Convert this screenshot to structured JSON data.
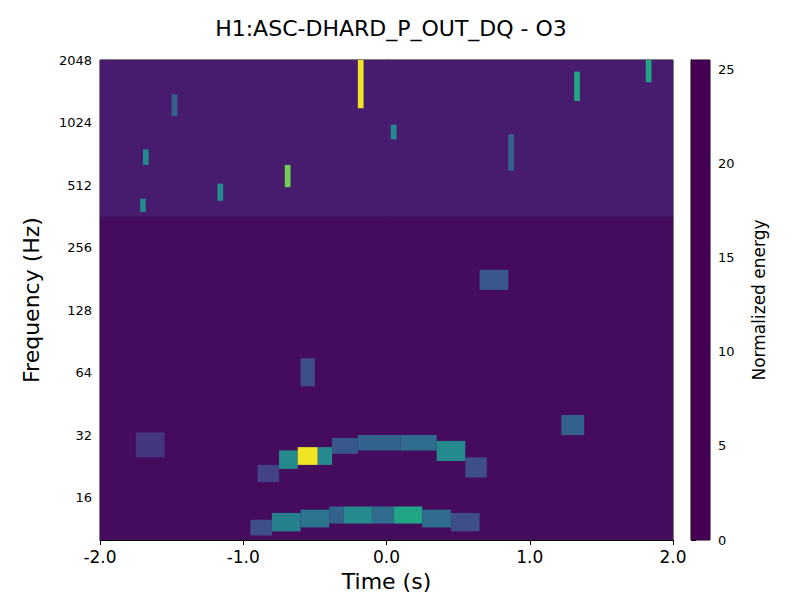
{
  "chart_data": {
    "type": "heatmap",
    "title": "H1:ASC-DHARD_P_OUT_DQ - O3",
    "x_label": "Time (s)",
    "y_label": "Frequency (Hz)",
    "xlim": [
      -2,
      2
    ],
    "xticks": [
      {
        "value": -2,
        "label": "-2.0"
      },
      {
        "value": -1,
        "label": "-1.0"
      },
      {
        "value": 0,
        "label": "0.0"
      },
      {
        "value": 1,
        "label": "1.0"
      },
      {
        "value": 2,
        "label": "2.0"
      }
    ],
    "ylim": [
      10,
      2048
    ],
    "yticks": [
      16,
      32,
      64,
      128,
      256,
      512,
      1024,
      2048
    ],
    "log": "y",
    "grid": false,
    "cells": [
      [
        -2,
        2,
        10,
        360,
        0.8
      ],
      [
        -2,
        2,
        360,
        2048,
        2
      ],
      [
        -0.95,
        -0.8,
        10.5,
        12.5,
        6
      ],
      [
        -0.8,
        -0.6,
        11,
        13.5,
        11
      ],
      [
        -0.6,
        -0.4,
        11.5,
        14,
        10
      ],
      [
        -0.4,
        -0.3,
        12,
        14.5,
        8
      ],
      [
        -0.3,
        -0.1,
        12,
        14.5,
        12
      ],
      [
        -0.1,
        0.05,
        12,
        14.5,
        9
      ],
      [
        0.05,
        0.25,
        12,
        14.5,
        15
      ],
      [
        0.25,
        0.45,
        11.5,
        14,
        9
      ],
      [
        0.45,
        0.65,
        11,
        13.5,
        6
      ],
      [
        -0.9,
        -0.75,
        19,
        23,
        5
      ],
      [
        -0.75,
        -0.62,
        22,
        27,
        12
      ],
      [
        -0.62,
        -0.48,
        23,
        28,
        25
      ],
      [
        -0.48,
        -0.38,
        23,
        28,
        12
      ],
      [
        -0.38,
        -0.2,
        26,
        31,
        7
      ],
      [
        -0.2,
        0.1,
        27,
        32,
        8
      ],
      [
        0.1,
        0.35,
        27,
        32,
        9
      ],
      [
        0.35,
        0.55,
        24,
        30,
        12
      ],
      [
        0.55,
        0.7,
        20,
        25,
        6
      ],
      [
        1.22,
        1.38,
        32,
        40,
        8
      ],
      [
        0.65,
        0.85,
        160,
        200,
        7
      ],
      [
        -0.6,
        -0.5,
        55,
        75,
        6
      ],
      [
        -1.75,
        -1.55,
        25,
        33,
        4
      ],
      [
        -0.2,
        -0.16,
        1200,
        2048,
        25
      ],
      [
        0.03,
        0.07,
        850,
        1000,
        12
      ],
      [
        -0.71,
        -0.67,
        500,
        640,
        20
      ],
      [
        -1.7,
        -1.66,
        640,
        760,
        12
      ],
      [
        -1.18,
        -1.14,
        430,
        520,
        12
      ],
      [
        1.31,
        1.35,
        1300,
        1800,
        15
      ],
      [
        1.81,
        1.85,
        1600,
        2048,
        15
      ],
      [
        -1.72,
        -1.68,
        380,
        440,
        12
      ],
      [
        -1.5,
        -1.46,
        1100,
        1400,
        8
      ],
      [
        0.85,
        0.89,
        600,
        900,
        8
      ]
    ],
    "colorbar_label": "Normalized energy",
    "colorbar_range": [
      0,
      25.5
    ],
    "colorbar_ticks": [
      0,
      5,
      10,
      15,
      20,
      25
    ]
  }
}
